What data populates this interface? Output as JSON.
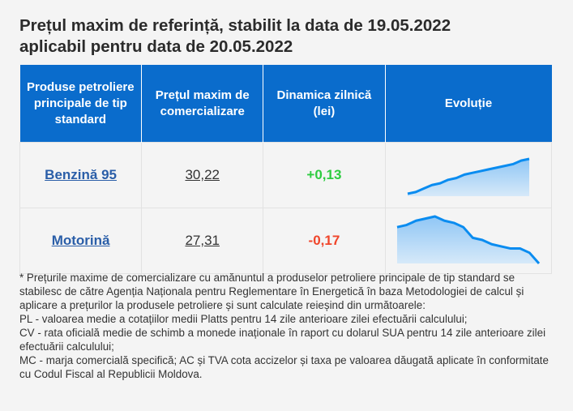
{
  "title_line1": "Prețul maxim de referință, stabilit la data de 19.05.2022",
  "title_line2": "aplicabil pentru data de 20.05.2022",
  "headers": [
    "Produse petroliere principale de tip standard",
    "Prețul maxim de comercializare",
    "Dinamica zilnică (lei)",
    "Evoluție"
  ],
  "rows": [
    {
      "product": "Benzină 95",
      "price": "30,22",
      "change": "+0,13",
      "trend": "up",
      "evolution": [
        0,
        1,
        3,
        5,
        6,
        8,
        9,
        11,
        12,
        13,
        14,
        15,
        16,
        17,
        19,
        20
      ]
    },
    {
      "product": "Motorină",
      "price": "27,31",
      "change": "-0,17",
      "trend": "down",
      "evolution": [
        17,
        18,
        20,
        21,
        22,
        20,
        19,
        17,
        12,
        11,
        9,
        8,
        7,
        7,
        5,
        0
      ]
    }
  ],
  "colors": {
    "header": "#0a6ccc",
    "up": "#2ecc40",
    "down": "#f0452a",
    "spark": "#0a8cf0"
  },
  "footnote": [
    "* Prețurile maxime de comercializare cu amănuntul a produselor petroliere principale de tip standard se stabilesc de către Agenția Naționala pentru Reglementare în Energetică în baza Metodologiei de calcul și aplicare a prețurilor la produsele petroliere și sunt calculate reieșind din următoarele:",
    "PL - valoarea medie a cotațiilor medii Platts pentru 14 zile anterioare zilei efectuării calculului;",
    "CV - rata oficială medie de schimb a monede inaționale în raport cu dolarul SUA pentru 14 zile anterioare zilei efectuării calculului;",
    "MC - marja comercială specifică; AC și TVA cota accizelor și taxa pe valoarea dăugată aplicate în conformitate cu Codul Fiscal al Republicii Moldova."
  ]
}
